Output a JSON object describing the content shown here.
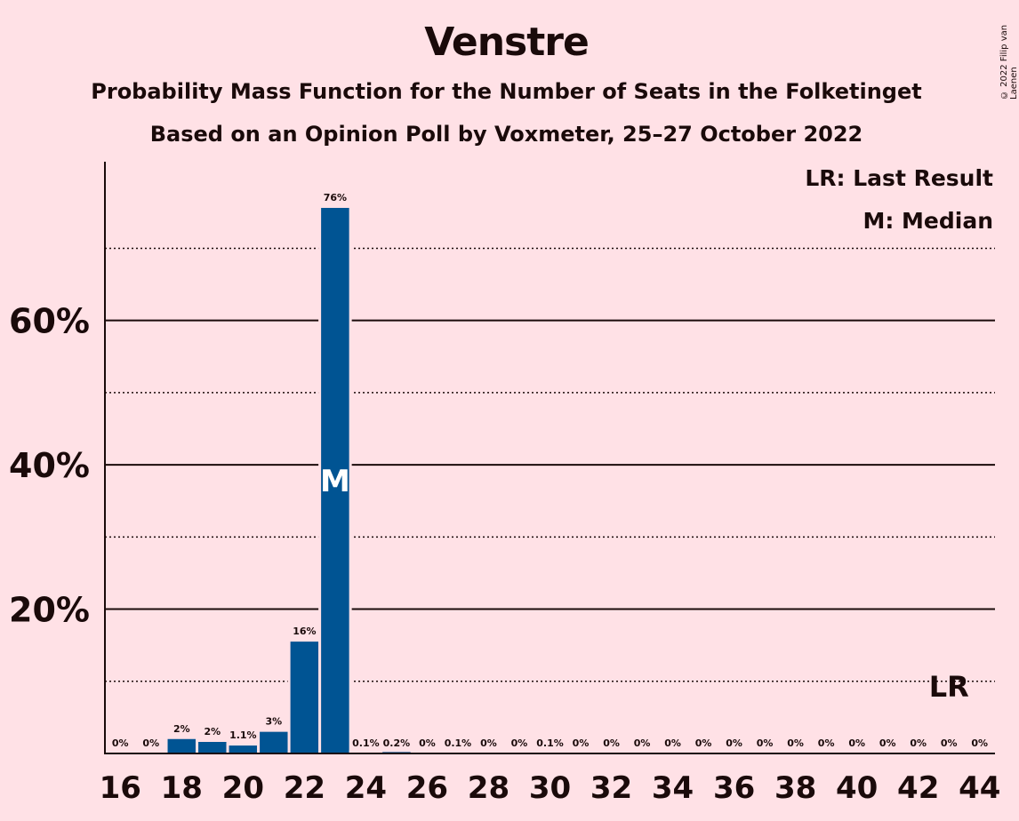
{
  "chart_data": {
    "type": "bar",
    "title": "Venstre",
    "subtitle": "Probability Mass Function for the Number of Seats in the Folketinget",
    "source_line": "Based on an Opinion Poll by Voxmeter, 25–27 October 2022",
    "copyright": "© 2022 Filip van Laenen",
    "legend": {
      "placement": "top-right",
      "entries": [
        "LR: Last Result",
        "M: Median"
      ]
    },
    "x": [
      16,
      17,
      18,
      19,
      20,
      21,
      22,
      23,
      24,
      25,
      26,
      27,
      28,
      29,
      30,
      31,
      32,
      33,
      34,
      35,
      36,
      37,
      38,
      39,
      40,
      41,
      42,
      43,
      44
    ],
    "values": [
      0,
      0,
      2,
      1.6,
      1.1,
      3,
      15.5,
      75.6,
      0.1,
      0.2,
      0,
      0.1,
      0,
      0,
      0.1,
      0,
      0,
      0,
      0,
      0,
      0,
      0,
      0,
      0,
      0,
      0,
      0,
      0,
      0
    ],
    "labels": [
      "0%",
      "0%",
      "2%",
      "2%",
      "1.1%",
      "3%",
      "16%",
      "76%",
      "0.1%",
      "0.2%",
      "0%",
      "0.1%",
      "0%",
      "0%",
      "0.1%",
      "0%",
      "0%",
      "0%",
      "0%",
      "0%",
      "0%",
      "0%",
      "0%",
      "0%",
      "0%",
      "0%",
      "0%",
      "0%",
      "0%"
    ],
    "x_ticks": [
      16,
      18,
      20,
      22,
      24,
      26,
      28,
      30,
      32,
      34,
      36,
      38,
      40,
      42,
      44
    ],
    "y_ticks": [
      20,
      40,
      60
    ],
    "y_tick_labels": [
      "20%",
      "40%",
      "60%"
    ],
    "y_minor_ticks": [
      10,
      30,
      50,
      70
    ],
    "ylim": [
      0,
      82
    ],
    "median": 23,
    "median_marker": "M",
    "last_result": 43,
    "last_result_marker": "LR",
    "bar_color": "#005493",
    "background": "#ffe1e6"
  }
}
